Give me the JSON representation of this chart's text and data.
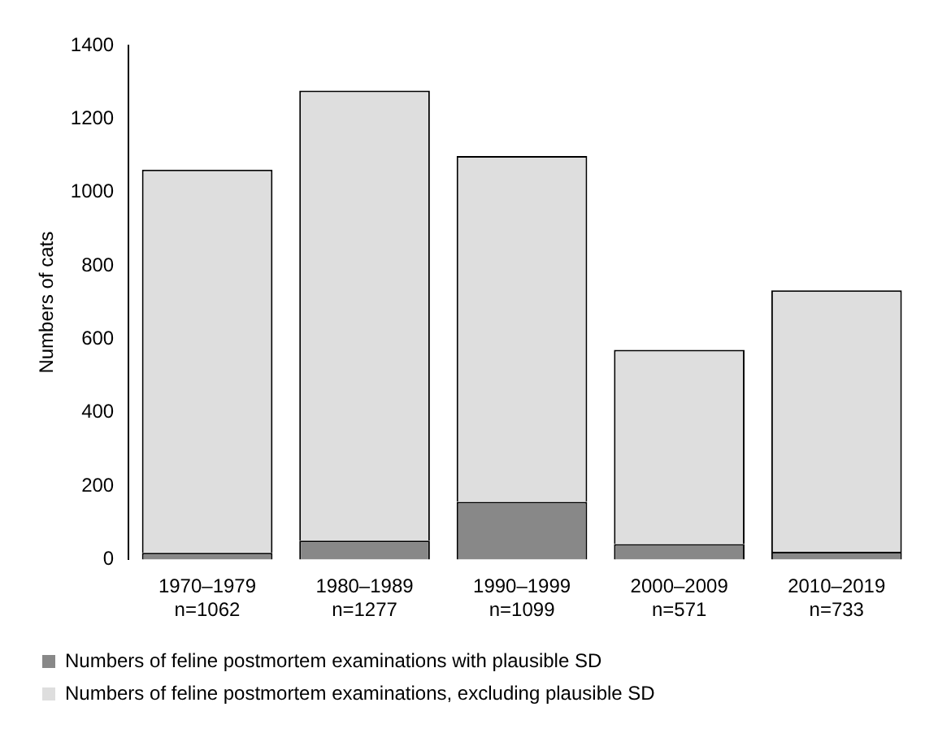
{
  "chart_data": {
    "type": "bar",
    "stacked": true,
    "ylabel": "Numbers of cats",
    "categories": [
      "1970–1979\nn=1062",
      "1980–1989\nn=1277",
      "1990–1999\nn=1099",
      "2000–2009\nn=571",
      "2010–2019\nn=733"
    ],
    "series": [
      {
        "name": "Numbers of feline postmortem examinations with plausible SD",
        "color": "#888888",
        "values": [
          18,
          51,
          157,
          42,
          21
        ]
      },
      {
        "name": "Numbers of feline postmortem examinations, excluding plausible SD",
        "color": "#dedede",
        "values": [
          1044,
          1226,
          942,
          529,
          712
        ]
      }
    ],
    "ylim": [
      0,
      1400
    ],
    "yticks": [
      0,
      200,
      400,
      600,
      800,
      1000,
      1200,
      1400
    ],
    "grid": false,
    "legend": "bottom"
  }
}
